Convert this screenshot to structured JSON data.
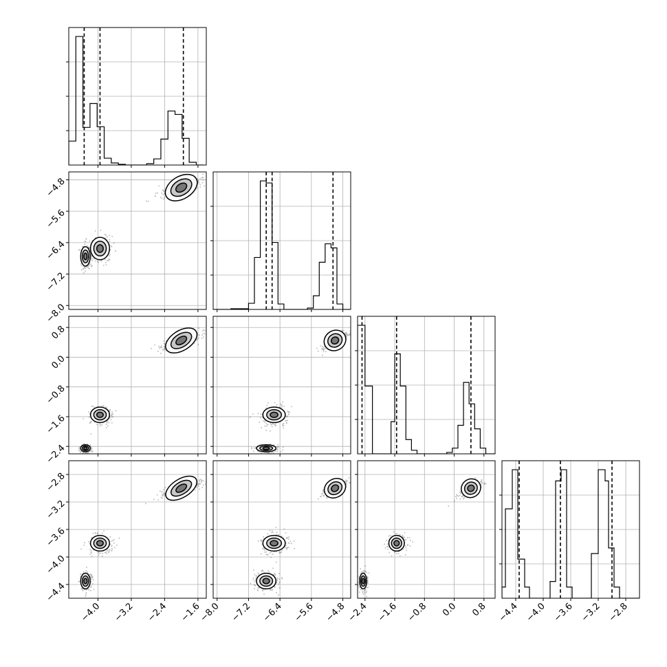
{
  "chart_data": {
    "type": "corner",
    "parameters": 4,
    "axis_ranges": [
      [
        -4.7,
        -1.4
      ],
      [
        -8.1,
        -4.6
      ],
      [
        -2.6,
        1.1
      ],
      [
        -4.6,
        -2.6
      ]
    ],
    "ticks": [
      [
        -4.0,
        -3.2,
        -2.4,
        -1.6
      ],
      [
        -8.0,
        -7.2,
        -6.4,
        -5.6,
        -4.8
      ],
      [
        -2.4,
        -1.6,
        -0.8,
        0.0,
        0.8
      ],
      [
        -4.4,
        -4.0,
        -3.6,
        -3.2,
        -2.8
      ]
    ],
    "tick_labels": [
      [
        "−4.0",
        "−3.2",
        "−2.4",
        "−1.6"
      ],
      [
        "−8.0",
        "−7.2",
        "−6.4",
        "−5.6",
        "−4.8"
      ],
      [
        "−2.4",
        "−1.6",
        "−0.8",
        "0.0",
        "0.8"
      ],
      [
        "−4.4",
        "−4.0",
        "−3.6",
        "−3.2",
        "−2.8"
      ]
    ],
    "quantile_lines": [
      [
        -4.33,
        -3.95,
        -1.95
      ],
      [
        -6.75,
        -6.6,
        -5.05
      ],
      [
        -2.48,
        -1.55,
        0.45
      ],
      [
        -4.35,
        -3.75,
        -3.0
      ]
    ],
    "histograms": [
      {
        "bins": [
          -4.7,
          -4.53,
          -4.36,
          -4.19,
          -4.02,
          -3.85,
          -3.68,
          -3.51,
          -3.34,
          -3.17,
          -3.0,
          -2.83,
          -2.66,
          -2.49,
          -2.32,
          -2.15,
          -1.98,
          -1.81,
          -1.64,
          -1.47
        ],
        "counts": [
          35,
          188,
          55,
          90,
          56,
          10,
          3,
          1,
          0,
          0,
          0,
          2,
          9,
          38,
          79,
          74,
          39,
          4,
          0
        ]
      },
      {
        "bins": [
          -8.1,
          -7.65,
          -7.2,
          -7.05,
          -6.9,
          -6.75,
          -6.6,
          -6.45,
          -6.3,
          -6.0,
          -5.7,
          -5.55,
          -5.4,
          -5.25,
          -5.1,
          -4.95,
          -4.8,
          -4.6
        ],
        "counts": [
          0,
          1,
          9,
          76,
          188,
          185,
          98,
          8,
          0,
          0,
          2,
          20,
          69,
          96,
          90,
          8,
          0
        ]
      },
      {
        "bins": [
          -2.6,
          -2.5,
          -2.4,
          -2.2,
          -1.9,
          -1.7,
          -1.6,
          -1.45,
          -1.3,
          -1.15,
          -1.0,
          -0.6,
          -0.2,
          -0.05,
          0.1,
          0.25,
          0.4,
          0.55,
          0.7,
          0.85,
          1.1
        ],
        "counts": [
          180,
          180,
          95,
          0,
          0,
          45,
          140,
          95,
          20,
          5,
          0,
          0,
          2,
          8,
          40,
          100,
          70,
          35,
          8,
          0
        ]
      },
      {
        "bins": [
          -4.6,
          -4.55,
          -4.45,
          -4.37,
          -4.27,
          -4.2,
          -4.1,
          -3.9,
          -3.82,
          -3.74,
          -3.66,
          -3.58,
          -3.5,
          -3.3,
          -3.2,
          -3.1,
          -3.05,
          -2.97,
          -2.89,
          -2.81,
          -2.73,
          -2.6
        ],
        "counts": [
          10,
          80,
          115,
          35,
          10,
          0,
          0,
          15,
          105,
          115,
          10,
          0,
          0,
          40,
          115,
          105,
          45,
          10,
          0,
          0,
          0
        ]
      }
    ],
    "grid": true
  }
}
